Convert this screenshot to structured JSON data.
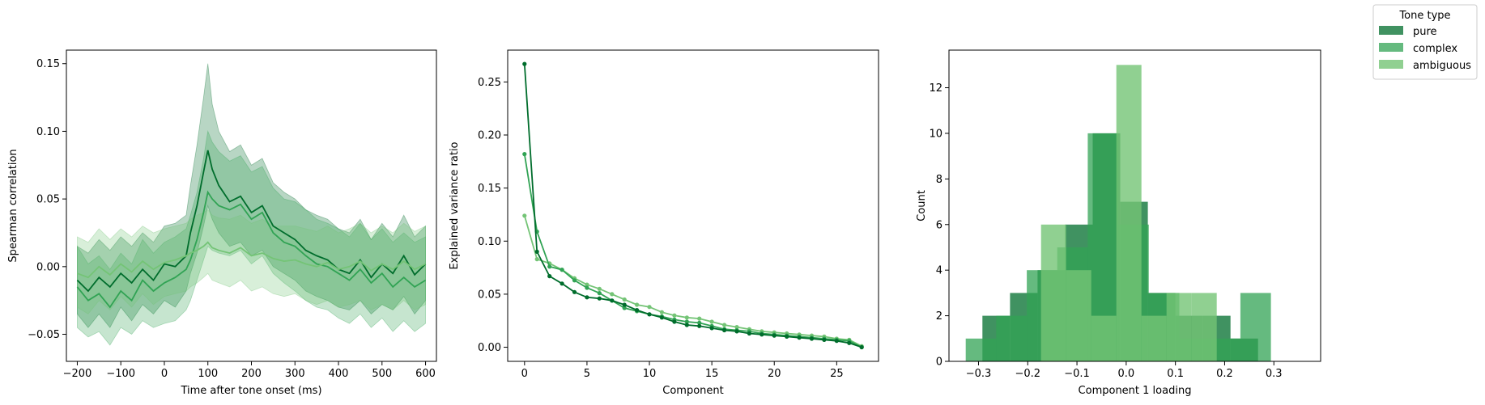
{
  "legend": {
    "title": "Tone type",
    "entries": [
      {
        "label": "pure",
        "color": "#006d2c"
      },
      {
        "label": "complex",
        "color": "#31a354"
      },
      {
        "label": "ambiguous",
        "color": "#74c476"
      }
    ]
  },
  "chart_data": [
    {
      "type": "line",
      "xlabel": "Time after tone onset (ms)",
      "ylabel": "Spearman correlation",
      "xlim": [
        -225,
        625
      ],
      "ylim": [
        -0.07,
        0.16
      ],
      "xticks": [
        -200,
        -100,
        0,
        100,
        200,
        300,
        400,
        500,
        600
      ],
      "yticks": [
        -0.05,
        0.0,
        0.05,
        0.1,
        0.15
      ],
      "ytick_labels": [
        "−0.05",
        "0.00",
        "0.05",
        "0.10",
        "0.15"
      ],
      "xtick_labels": [
        "−200",
        "−100",
        "0",
        "100",
        "200",
        "300",
        "400",
        "500",
        "600"
      ],
      "x": [
        -200,
        -175,
        -150,
        -125,
        -100,
        -75,
        -50,
        -25,
        0,
        25,
        50,
        60,
        75,
        90,
        100,
        110,
        125,
        150,
        175,
        200,
        225,
        250,
        275,
        300,
        325,
        350,
        375,
        400,
        425,
        450,
        475,
        500,
        525,
        550,
        575,
        600
      ],
      "series": [
        {
          "color": "#006d2c",
          "values": [
            -0.01,
            -0.018,
            -0.008,
            -0.015,
            -0.005,
            -0.012,
            -0.002,
            -0.01,
            0.002,
            0.0,
            0.008,
            0.025,
            0.045,
            0.07,
            0.086,
            0.072,
            0.06,
            0.048,
            0.052,
            0.04,
            0.045,
            0.03,
            0.025,
            0.02,
            0.012,
            0.008,
            0.005,
            -0.002,
            -0.005,
            0.005,
            -0.008,
            0.002,
            -0.005,
            0.008,
            -0.006,
            0.002
          ],
          "lower": [
            -0.035,
            -0.045,
            -0.035,
            -0.045,
            -0.03,
            -0.04,
            -0.028,
            -0.035,
            -0.025,
            -0.03,
            -0.018,
            -0.005,
            0.01,
            0.03,
            0.045,
            0.035,
            0.025,
            0.015,
            0.018,
            0.008,
            0.012,
            0.0,
            -0.005,
            -0.01,
            -0.018,
            -0.022,
            -0.025,
            -0.03,
            -0.032,
            -0.025,
            -0.035,
            -0.028,
            -0.032,
            -0.022,
            -0.035,
            -0.025
          ],
          "upper": [
            0.015,
            0.01,
            0.02,
            0.012,
            0.022,
            0.015,
            0.025,
            0.018,
            0.03,
            0.032,
            0.038,
            0.06,
            0.09,
            0.125,
            0.15,
            0.12,
            0.1,
            0.085,
            0.09,
            0.075,
            0.08,
            0.062,
            0.055,
            0.05,
            0.042,
            0.038,
            0.035,
            0.028,
            0.025,
            0.035,
            0.02,
            0.032,
            0.022,
            0.038,
            0.022,
            0.03
          ]
        },
        {
          "color": "#31a354",
          "values": [
            -0.015,
            -0.025,
            -0.02,
            -0.03,
            -0.018,
            -0.025,
            -0.01,
            -0.018,
            -0.012,
            -0.008,
            -0.002,
            0.005,
            0.02,
            0.04,
            0.055,
            0.05,
            0.045,
            0.042,
            0.046,
            0.035,
            0.04,
            0.025,
            0.018,
            0.015,
            0.008,
            0.002,
            0.0,
            -0.005,
            -0.01,
            -0.002,
            -0.012,
            -0.005,
            -0.015,
            -0.008,
            -0.015,
            -0.01
          ],
          "lower": [
            -0.045,
            -0.052,
            -0.048,
            -0.058,
            -0.045,
            -0.05,
            -0.04,
            -0.045,
            -0.042,
            -0.04,
            -0.032,
            -0.025,
            -0.01,
            0.005,
            0.015,
            0.012,
            0.01,
            0.008,
            0.012,
            0.002,
            0.008,
            -0.005,
            -0.012,
            -0.018,
            -0.025,
            -0.03,
            -0.032,
            -0.038,
            -0.042,
            -0.035,
            -0.045,
            -0.038,
            -0.048,
            -0.04,
            -0.048,
            -0.042
          ],
          "upper": [
            0.015,
            0.002,
            0.008,
            -0.002,
            0.01,
            0.002,
            0.02,
            0.01,
            0.018,
            0.022,
            0.028,
            0.038,
            0.055,
            0.08,
            0.1,
            0.092,
            0.085,
            0.078,
            0.082,
            0.07,
            0.074,
            0.058,
            0.05,
            0.048,
            0.042,
            0.035,
            0.032,
            0.028,
            0.022,
            0.032,
            0.02,
            0.028,
            0.018,
            0.025,
            0.018,
            0.022
          ]
        },
        {
          "color": "#74c476",
          "values": [
            -0.005,
            -0.008,
            0.0,
            -0.006,
            0.002,
            -0.004,
            0.004,
            -0.002,
            0.003,
            0.005,
            0.008,
            0.01,
            0.012,
            0.015,
            0.018,
            0.014,
            0.012,
            0.01,
            0.014,
            0.008,
            0.01,
            0.006,
            0.004,
            0.005,
            0.002,
            0.0,
            0.003,
            -0.002,
            0.0,
            0.004,
            -0.003,
            0.002,
            -0.002,
            0.004,
            -0.002,
            0.002
          ],
          "lower": [
            -0.03,
            -0.035,
            -0.025,
            -0.032,
            -0.022,
            -0.03,
            -0.02,
            -0.028,
            -0.022,
            -0.02,
            -0.018,
            -0.015,
            -0.012,
            -0.008,
            -0.005,
            -0.01,
            -0.012,
            -0.015,
            -0.01,
            -0.018,
            -0.015,
            -0.02,
            -0.022,
            -0.02,
            -0.025,
            -0.028,
            -0.025,
            -0.03,
            -0.028,
            -0.025,
            -0.032,
            -0.028,
            -0.032,
            -0.025,
            -0.032,
            -0.028
          ],
          "upper": [
            0.022,
            0.018,
            0.028,
            0.02,
            0.028,
            0.022,
            0.03,
            0.025,
            0.028,
            0.03,
            0.032,
            0.035,
            0.038,
            0.04,
            0.042,
            0.038,
            0.036,
            0.035,
            0.038,
            0.032,
            0.035,
            0.03,
            0.03,
            0.03,
            0.028,
            0.026,
            0.03,
            0.025,
            0.028,
            0.032,
            0.025,
            0.03,
            0.025,
            0.032,
            0.026,
            0.03
          ]
        }
      ]
    },
    {
      "type": "line",
      "xlabel": "Component",
      "ylabel": "Explained variance ratio",
      "xlim": [
        -1.35,
        28.35
      ],
      "ylim": [
        -0.0133,
        0.28
      ],
      "xticks": [
        0,
        5,
        10,
        15,
        20,
        25
      ],
      "xtick_labels": [
        "0",
        "5",
        "10",
        "15",
        "20",
        "25"
      ],
      "yticks": [
        0.0,
        0.05,
        0.1,
        0.15,
        0.2,
        0.25
      ],
      "ytick_labels": [
        "0.00",
        "0.05",
        "0.10",
        "0.15",
        "0.20",
        "0.25"
      ],
      "x": [
        0,
        1,
        2,
        3,
        4,
        5,
        6,
        7,
        8,
        9,
        10,
        11,
        12,
        13,
        14,
        15,
        16,
        17,
        18,
        19,
        20,
        21,
        22,
        23,
        24,
        25,
        26,
        27
      ],
      "series": [
        {
          "color": "#006d2c",
          "values": [
            0.267,
            0.09,
            0.067,
            0.06,
            0.052,
            0.047,
            0.046,
            0.044,
            0.04,
            0.035,
            0.031,
            0.028,
            0.024,
            0.021,
            0.02,
            0.018,
            0.016,
            0.015,
            0.013,
            0.012,
            0.011,
            0.01,
            0.009,
            0.008,
            0.007,
            0.006,
            0.004,
            0.0
          ]
        },
        {
          "color": "#31a354",
          "values": [
            0.182,
            0.109,
            0.076,
            0.073,
            0.063,
            0.056,
            0.051,
            0.044,
            0.037,
            0.034,
            0.031,
            0.029,
            0.026,
            0.024,
            0.023,
            0.02,
            0.017,
            0.016,
            0.015,
            0.013,
            0.012,
            0.011,
            0.01,
            0.009,
            0.008,
            0.007,
            0.006,
            0.0
          ]
        },
        {
          "color": "#74c476",
          "values": [
            0.124,
            0.083,
            0.079,
            0.073,
            0.065,
            0.059,
            0.055,
            0.05,
            0.045,
            0.04,
            0.038,
            0.033,
            0.03,
            0.028,
            0.027,
            0.024,
            0.021,
            0.019,
            0.017,
            0.015,
            0.014,
            0.013,
            0.012,
            0.011,
            0.01,
            0.008,
            0.007,
            0.001
          ]
        }
      ]
    },
    {
      "type": "bar",
      "subtype": "histogram",
      "xlabel": "Component 1 loading",
      "ylabel": "Count",
      "xlim": [
        -0.36,
        0.395
      ],
      "ylim": [
        0,
        13.65
      ],
      "xticks": [
        -0.3,
        -0.2,
        -0.1,
        0.0,
        0.1,
        0.2,
        0.3
      ],
      "xtick_labels": [
        "−0.3",
        "−0.2",
        "−0.1",
        "0.0",
        "0.1",
        "0.2",
        "0.3"
      ],
      "yticks": [
        0,
        2,
        4,
        6,
        8,
        10,
        12
      ],
      "ytick_labels": [
        "0",
        "2",
        "4",
        "6",
        "8",
        "10",
        "12"
      ],
      "series": [
        {
          "color": "#006d2c",
          "opacity": 0.75,
          "bins": [
            -0.292,
            -0.236,
            -0.18,
            -0.124,
            -0.068,
            -0.012,
            0.044,
            0.1,
            0.156,
            0.212,
            0.268,
            0.324
          ],
          "counts": [
            2,
            3,
            4,
            6,
            10,
            7,
            3,
            2,
            2,
            1,
            0
          ]
        },
        {
          "color": "#31a354",
          "opacity": 0.75,
          "bins": [
            -0.326,
            -0.264,
            -0.202,
            -0.14,
            -0.078,
            -0.016,
            0.046,
            0.108,
            0.17,
            0.232,
            0.294,
            0.356
          ],
          "counts": [
            1,
            2,
            4,
            5,
            10,
            6,
            3,
            1,
            1,
            3,
            0
          ]
        },
        {
          "color": "#74c476",
          "opacity": 0.8,
          "bins": [
            -0.173,
            -0.122,
            -0.071,
            -0.02,
            0.031,
            0.082,
            0.133,
            0.184
          ],
          "counts": [
            6,
            4,
            2,
            13,
            2,
            3,
            3
          ]
        }
      ]
    }
  ]
}
